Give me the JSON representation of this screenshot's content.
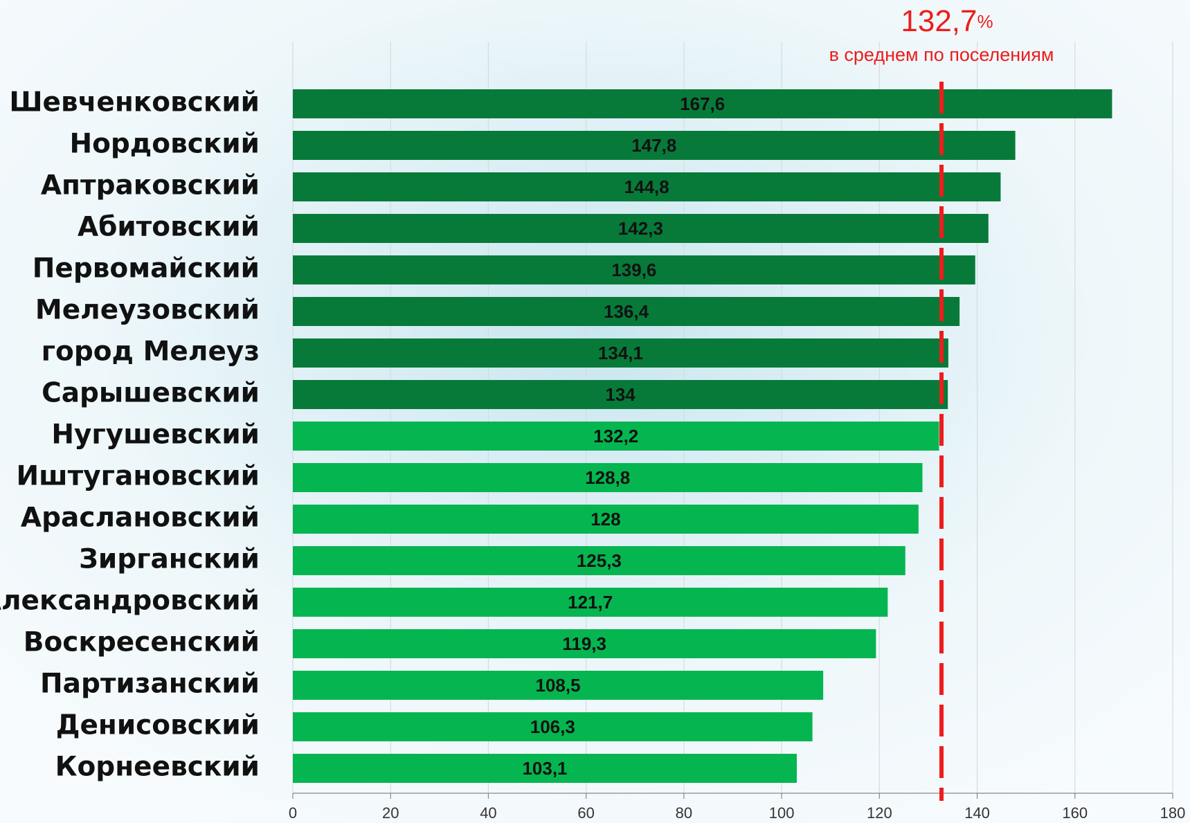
{
  "chart_data": {
    "type": "barh",
    "categories": [
      "Шевченковский",
      "Нордовский",
      "Аптраковский",
      "Абитовский",
      "Первомайский",
      "Мелеузовский",
      "город Мелеуз",
      "Сарышевский",
      "Нугушевский",
      "Иштугановский",
      "Араслановский",
      "Зирганский",
      "Александровский",
      "Воскресенский",
      "Партизанский",
      "Денисовский",
      "Корнеевский"
    ],
    "values": [
      167.6,
      147.8,
      144.8,
      142.3,
      139.6,
      136.4,
      134.1,
      134,
      132.2,
      128.8,
      128,
      125.3,
      121.7,
      119.3,
      108.5,
      106.3,
      103.1
    ],
    "value_labels": [
      "167,6",
      "147,8",
      "144,8",
      "142,3",
      "139,6",
      "136,4",
      "134,1",
      "134",
      "132,2",
      "128,8",
      "128",
      "125,3",
      "121,7",
      "119,3",
      "108,5",
      "106,3",
      "103,1"
    ],
    "colors": [
      "#077a3a",
      "#077a3a",
      "#077a3a",
      "#077a3a",
      "#077a3a",
      "#077a3a",
      "#077a3a",
      "#077a3a",
      "#05b550",
      "#05b550",
      "#05b550",
      "#05b550",
      "#05b550",
      "#05b550",
      "#05b550",
      "#05b550",
      "#05b550"
    ],
    "xlim": [
      0,
      180
    ],
    "xticks": [
      0,
      20,
      40,
      60,
      80,
      100,
      120,
      140,
      160,
      180
    ],
    "grid": true,
    "reference_line": {
      "value": 132.7,
      "label": "132,7",
      "unit": "%",
      "text": "в среднем по поселениям",
      "color": "#ee1c1c"
    }
  }
}
